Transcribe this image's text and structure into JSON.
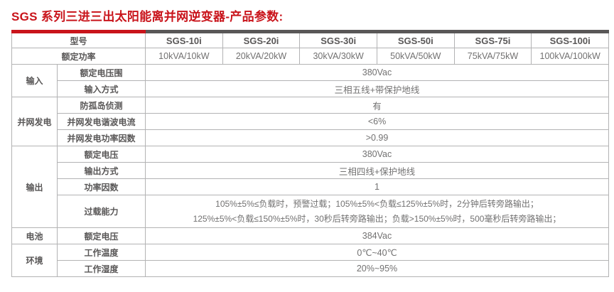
{
  "title": "SGS 系列三进三出太阳能离并网逆变器-产品参数:",
  "colors": {
    "accent_red": "#c9141b",
    "bar_dark": "#595757",
    "label_text": "#595757",
    "value_text": "#727171",
    "grid_line": "#b3b3b4"
  },
  "table": {
    "header": {
      "model_label": "型号",
      "models": [
        "SGS-10i",
        "SGS-20i",
        "SGS-30i",
        "SGS-50i",
        "SGS-75i",
        "SGS-100i"
      ]
    },
    "power_row": {
      "label": "额定功率",
      "values": [
        "10kVA/10kW",
        "20kVA/20kW",
        "30kVA/30kW",
        "50kVA/50kW",
        "75kVA/75kW",
        "100kVA/100kW"
      ]
    },
    "groups": [
      {
        "name": "输入",
        "rows": [
          {
            "label": "额定电压围",
            "value": "380Vac"
          },
          {
            "label": "输入方式",
            "value": "三相五线+带保护地线"
          }
        ]
      },
      {
        "name": "并网发电",
        "rows": [
          {
            "label": "防孤岛侦测",
            "value": "有"
          },
          {
            "label": "并网发电谐波电流",
            "value": "<6%"
          },
          {
            "label": "并网发电功率因数",
            "value": ">0.99"
          }
        ]
      },
      {
        "name": "输出",
        "rows": [
          {
            "label": "额定电压",
            "value": "380Vac"
          },
          {
            "label": "输出方式",
            "value": "三相四线+保护地线"
          },
          {
            "label": "功率因数",
            "value": "1"
          },
          {
            "label": "过载能力",
            "value_lines": [
              "105%±5%≤负载时，预警过载；105%±5%<负载≤125%±5%时，2分钟后转旁路输出；",
              "125%±5%<负载≤150%±5%时，30秒后转旁路输出；负载>150%±5%时，500毫秒后转旁路输出；"
            ]
          }
        ]
      },
      {
        "name": "电池",
        "rows": [
          {
            "label": "额定电压",
            "value": "384Vac"
          }
        ]
      },
      {
        "name": "环境",
        "rows": [
          {
            "label": "工作温度",
            "value": "0℃~40℃"
          },
          {
            "label": "工作湿度",
            "value": "20%~95%"
          }
        ]
      }
    ]
  }
}
